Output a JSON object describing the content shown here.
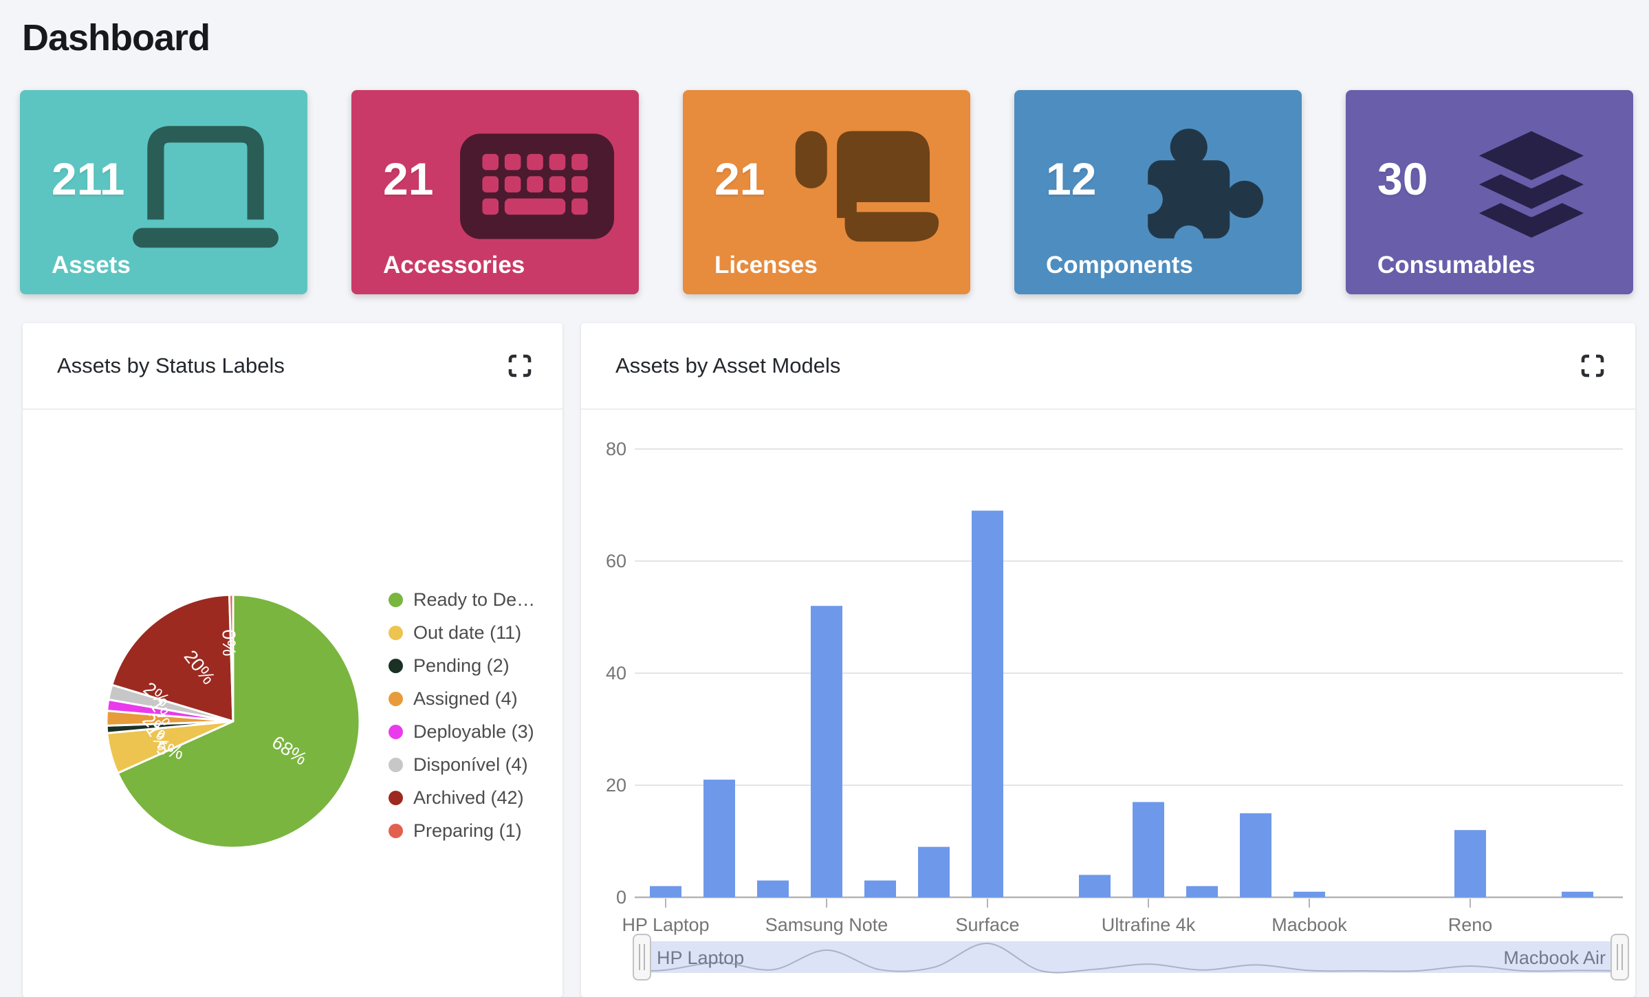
{
  "page": {
    "title": "Dashboard",
    "background": "#f4f5f8"
  },
  "stat_cards": [
    {
      "value": "211",
      "label": "Assets",
      "icon": "laptop-icon",
      "bg": "#5cc5c1",
      "icon_color": "#2b5d57"
    },
    {
      "value": "21",
      "label": "Accessories",
      "icon": "keyboard-icon",
      "bg": "#ca3a68",
      "icon_color": "#4b1a2e"
    },
    {
      "value": "21",
      "label": "Licenses",
      "icon": "scroll-icon",
      "bg": "#e78b3d",
      "icon_color": "#6e4317"
    },
    {
      "value": "12",
      "label": "Components",
      "icon": "puzzle-piece-icon",
      "bg": "#4e8dbf",
      "icon_color": "#213748"
    },
    {
      "value": "30",
      "label": "Consumables",
      "icon": "layer-group-icon",
      "bg": "#685eaa",
      "icon_color": "#272148"
    }
  ],
  "panels": [
    {
      "title": "Assets by Status Labels",
      "action_icon": "fullscreen-expand-icon"
    },
    {
      "title": "Assets by Asset Models",
      "action_icon": "fullscreen-expand-icon"
    }
  ],
  "chart_data": [
    {
      "type": "pie",
      "title": "Assets by Status Labels",
      "legend_position": "right",
      "slices": [
        {
          "label": "Ready to De…",
          "percent_label": "68%",
          "degrees": 245.8,
          "color": "#7ab53f"
        },
        {
          "label": "Out date (11)",
          "percent_label": "5%",
          "degrees": 18.8,
          "color": "#edc44f"
        },
        {
          "label": "Pending (2)",
          "percent_label": "1%",
          "degrees": 3.4,
          "color": "#1c3125"
        },
        {
          "label": "Assigned (4)",
          "percent_label": "2%",
          "degrees": 6.8,
          "color": "#e79b3a"
        },
        {
          "label": "Deployable (3)",
          "percent_label": "1%",
          "degrees": 5.1,
          "color": "#e93bed"
        },
        {
          "label": "Disponível (4)",
          "percent_label": "2%",
          "degrees": 6.8,
          "color": "#c7c7c7"
        },
        {
          "label": "Archived (42)",
          "percent_label": "20%",
          "degrees": 71.6,
          "color": "#9c2a20"
        },
        {
          "label": "Preparing (1)",
          "percent_label": "0%",
          "degrees": 1.7,
          "color": "#e2604e"
        }
      ]
    },
    {
      "type": "bar",
      "title": "Assets by Asset Models",
      "values": [
        2,
        21,
        3,
        52,
        3,
        9,
        69,
        0,
        4,
        17,
        2,
        15,
        1,
        0,
        0,
        12,
        0,
        1
      ],
      "tick_labels": [
        "HP Laptop",
        "Samsung Note",
        "Surface",
        "Ultrafine 4k",
        "Macbook",
        "Reno"
      ],
      "tick_indices": [
        0,
        3,
        6,
        9,
        12,
        15
      ],
      "yticks": [
        0,
        20,
        40,
        60,
        80
      ],
      "ylim": [
        0,
        80
      ],
      "grid": true,
      "bar_color": "#6e98ea",
      "scrollbar": {
        "left_label": "HP Laptop",
        "right_label": "Macbook Air"
      }
    }
  ]
}
